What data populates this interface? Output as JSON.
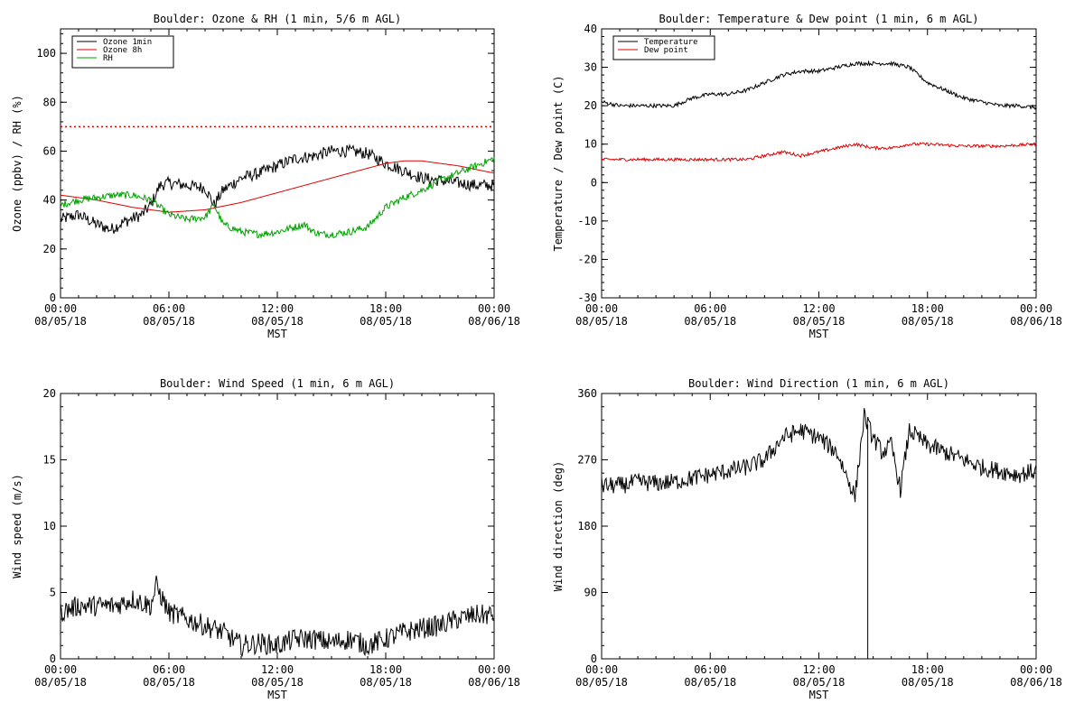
{
  "charts": [
    {
      "title": "Boulder: Ozone & RH (1 min, 5/6 m AGL)",
      "ylabel": "Ozone (ppbv) / RH (%)",
      "xlabel": "MST",
      "ylim": [
        0,
        110
      ],
      "yticks": [
        0,
        20,
        40,
        60,
        80,
        100
      ],
      "xticks": [
        {
          "time": "00:00",
          "date": "08/05/18"
        },
        {
          "time": "06:00",
          "date": "08/05/18"
        },
        {
          "time": "12:00",
          "date": "08/05/18"
        },
        {
          "time": "18:00",
          "date": "08/05/18"
        },
        {
          "time": "00:00",
          "date": "08/06/18"
        }
      ],
      "reference_line": {
        "value": 70,
        "color": "#e00000",
        "style": "dotted"
      },
      "legend": [
        {
          "name": "Ozone 1min",
          "color": "#000000"
        },
        {
          "name": "Ozone 8h",
          "color": "#e00000"
        },
        {
          "name": "RH",
          "color": "#00a000"
        }
      ]
    },
    {
      "title": "Boulder: Temperature & Dew point (1 min, 6 m AGL)",
      "ylabel": "Temperature / Dew point (C)",
      "xlabel": "MST",
      "ylim": [
        -30,
        40
      ],
      "yticks": [
        -30,
        -20,
        -10,
        0,
        10,
        20,
        30,
        40
      ],
      "xticks": [
        {
          "time": "00:00",
          "date": "08/05/18"
        },
        {
          "time": "06:00",
          "date": "08/05/18"
        },
        {
          "time": "12:00",
          "date": "08/05/18"
        },
        {
          "time": "18:00",
          "date": "08/05/18"
        },
        {
          "time": "00:00",
          "date": "08/06/18"
        }
      ],
      "legend": [
        {
          "name": "Temperature",
          "color": "#000000"
        },
        {
          "name": "Dew point",
          "color": "#e00000"
        }
      ]
    },
    {
      "title": "Boulder: Wind Speed (1 min, 6 m AGL)",
      "ylabel": "Wind speed (m/s)",
      "xlabel": "MST",
      "ylim": [
        0,
        20
      ],
      "yticks": [
        0,
        5,
        10,
        15,
        20
      ],
      "xticks": [
        {
          "time": "00:00",
          "date": "08/05/18"
        },
        {
          "time": "06:00",
          "date": "08/05/18"
        },
        {
          "time": "12:00",
          "date": "08/05/18"
        },
        {
          "time": "18:00",
          "date": "08/05/18"
        },
        {
          "time": "00:00",
          "date": "08/06/18"
        }
      ],
      "legend": []
    },
    {
      "title": "Boulder: Wind Direction (1 min, 6 m AGL)",
      "ylabel": "Wind direction (deg)",
      "xlabel": "MST",
      "ylim": [
        0,
        360
      ],
      "yticks": [
        0,
        90,
        180,
        270,
        360
      ],
      "xticks": [
        {
          "time": "00:00",
          "date": "08/05/18"
        },
        {
          "time": "06:00",
          "date": "08/05/18"
        },
        {
          "time": "12:00",
          "date": "08/05/18"
        },
        {
          "time": "18:00",
          "date": "08/05/18"
        },
        {
          "time": "00:00",
          "date": "08/06/18"
        }
      ],
      "legend": []
    }
  ],
  "chart_data": [
    {
      "type": "line",
      "title": "Boulder: Ozone & RH (1 min, 5/6 m AGL)",
      "xlabel": "MST",
      "ylabel": "Ozone (ppbv) / RH (%)",
      "x_unit": "hours since 00:00 MST 08/05/18",
      "ylim": [
        0,
        110
      ],
      "series": [
        {
          "name": "Ozone 1min",
          "color": "#000000",
          "noise": 2.5,
          "x": [
            0,
            1,
            2,
            2.8,
            3.5,
            4.5,
            5,
            5.5,
            6,
            7,
            8,
            8.5,
            9,
            10,
            11,
            12,
            13,
            14,
            15,
            16,
            17,
            17.5,
            18,
            19,
            20,
            21,
            22,
            23,
            24
          ],
          "y": [
            32,
            34,
            30,
            28,
            31,
            34,
            38,
            46,
            47,
            46,
            45,
            38,
            44,
            49,
            51,
            54,
            57,
            58,
            60,
            60,
            59,
            57,
            55,
            52,
            49,
            48,
            47,
            46,
            46
          ]
        },
        {
          "name": "Ozone 8h",
          "color": "#e00000",
          "noise": 0,
          "x": [
            0,
            2,
            4,
            6,
            8,
            10,
            12,
            14,
            16,
            18,
            19,
            20,
            21,
            22,
            24
          ],
          "y": [
            42,
            40,
            37,
            35,
            36,
            39,
            43,
            47,
            51,
            55,
            56,
            56,
            55,
            54,
            51
          ]
        },
        {
          "name": "RH",
          "color": "#00a000",
          "noise": 1.5,
          "x": [
            0,
            1,
            2,
            3,
            4,
            5,
            6,
            7,
            8,
            8.5,
            9,
            10,
            11,
            12,
            13,
            13.5,
            14,
            14.5,
            15,
            16,
            17,
            18,
            19,
            20,
            21,
            22,
            23,
            24
          ],
          "y": [
            38,
            40,
            41,
            42,
            42,
            40,
            34,
            32,
            33,
            38,
            30,
            27,
            26,
            27,
            29,
            30,
            27,
            26,
            26,
            27,
            29,
            37,
            41,
            44,
            48,
            51,
            54,
            57
          ]
        }
      ],
      "reference_line": {
        "value": 70
      }
    },
    {
      "type": "line",
      "title": "Boulder: Temperature & Dew point (1 min, 6 m AGL)",
      "xlabel": "MST",
      "ylabel": "Temperature / Dew point (C)",
      "x_unit": "hours since 00:00 MST 08/05/18",
      "ylim": [
        -30,
        40
      ],
      "series": [
        {
          "name": "Temperature",
          "color": "#000000",
          "noise": 0.5,
          "x": [
            0,
            1,
            2,
            3,
            4,
            5,
            6,
            7,
            8,
            9,
            10,
            11,
            12,
            13,
            14,
            15,
            16,
            17,
            18,
            19,
            20,
            21,
            22,
            23,
            24
          ],
          "y": [
            21,
            20,
            20,
            20,
            20,
            22,
            23,
            23,
            24,
            26,
            28,
            29,
            29,
            30,
            31,
            31,
            31,
            30,
            26,
            24,
            22,
            21,
            20,
            20,
            19.5
          ]
        },
        {
          "name": "Dew point",
          "color": "#e00000",
          "noise": 0.4,
          "x": [
            0,
            2,
            4,
            6,
            8,
            9,
            10,
            11,
            12,
            13,
            14,
            15,
            16,
            17,
            18,
            20,
            22,
            24
          ],
          "y": [
            6,
            6,
            6,
            6,
            6,
            7,
            8,
            7,
            8,
            9,
            10,
            9,
            9,
            10,
            10,
            9.5,
            9.5,
            10
          ]
        }
      ]
    },
    {
      "type": "line",
      "title": "Boulder: Wind Speed (1 min, 6 m AGL)",
      "xlabel": "MST",
      "ylabel": "Wind speed (m/s)",
      "x_unit": "hours since 00:00 MST 08/05/18",
      "ylim": [
        0,
        20
      ],
      "series": [
        {
          "name": "Wind speed",
          "color": "#000000",
          "noise": 0.8,
          "x": [
            0,
            1,
            2,
            3,
            4,
            5,
            5.3,
            6,
            7,
            8,
            9,
            10,
            11,
            12,
            13,
            14,
            15,
            16,
            17,
            18,
            19,
            20,
            21,
            22,
            23,
            24
          ],
          "y": [
            3.5,
            4,
            4,
            4,
            4.5,
            4,
            5.5,
            3.5,
            3,
            2.5,
            2,
            1,
            1.2,
            1,
            1.5,
            1.5,
            1.2,
            1.5,
            1,
            1.5,
            2,
            2.3,
            2.5,
            3,
            3.3,
            3.3
          ]
        }
      ]
    },
    {
      "type": "line",
      "title": "Boulder: Wind Direction (1 min, 6 m AGL)",
      "xlabel": "MST",
      "ylabel": "Wind direction (deg)",
      "x_unit": "hours since 00:00 MST 08/05/18",
      "ylim": [
        0,
        360
      ],
      "series": [
        {
          "name": "Wind direction",
          "color": "#000000",
          "noise": 12,
          "x": [
            0,
            1,
            2,
            3,
            4,
            5,
            6,
            7,
            8,
            9,
            10,
            11,
            12,
            13,
            13.5,
            14,
            14.5,
            15,
            15.5,
            16,
            16.5,
            17,
            18,
            19,
            20,
            21,
            22,
            23,
            24
          ],
          "y": [
            235,
            235,
            240,
            238,
            240,
            245,
            250,
            255,
            260,
            270,
            300,
            310,
            300,
            280,
            250,
            220,
            330,
            300,
            280,
            290,
            230,
            310,
            290,
            280,
            270,
            260,
            255,
            250,
            255
          ]
        }
      ],
      "spike": {
        "x": 14.7,
        "y": 0
      }
    }
  ]
}
